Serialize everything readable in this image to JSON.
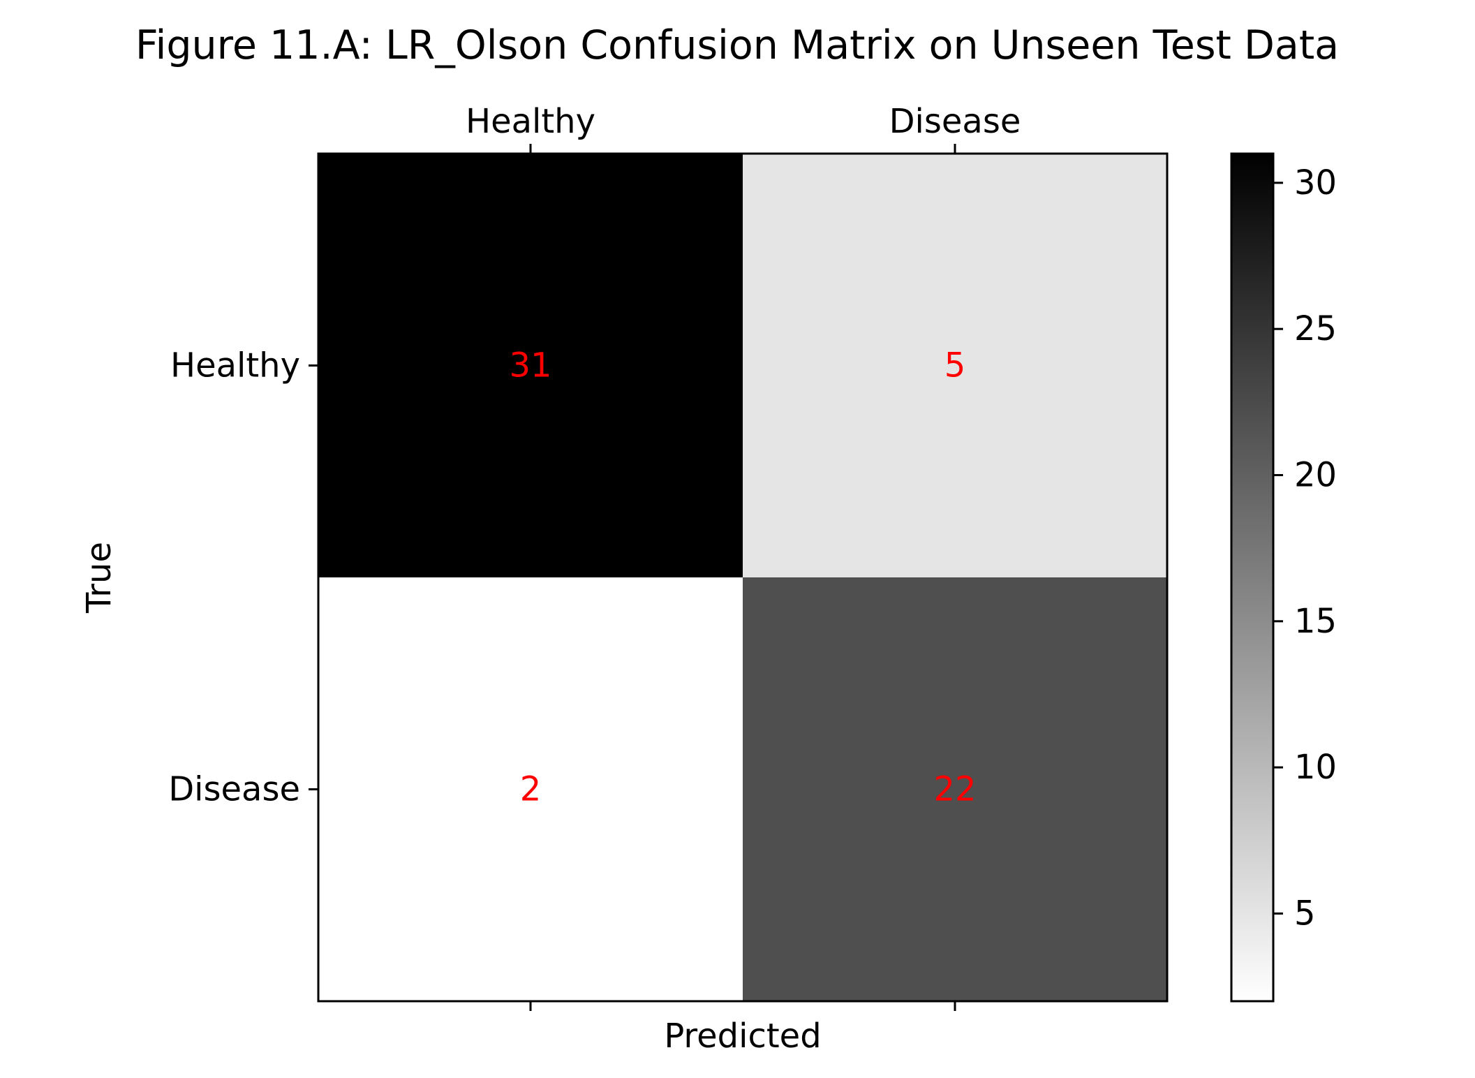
{
  "chart_data": {
    "type": "heatmap",
    "title": "Figure 11.A: LR_Olson Confusion Matrix on Unseen Test Data",
    "xlabel": "Predicted",
    "ylabel": "True",
    "x_categories": [
      "Healthy",
      "Disease"
    ],
    "y_categories": [
      "Healthy",
      "Disease"
    ],
    "values": [
      [
        31,
        5
      ],
      [
        2,
        22
      ]
    ],
    "colormap": "gray_r",
    "cell_label_color": "#ff0000",
    "colorbar": {
      "range": [
        2,
        31
      ],
      "ticks": [
        5,
        10,
        15,
        20,
        25,
        30
      ]
    },
    "x_tick_position": "top",
    "grid": false
  }
}
